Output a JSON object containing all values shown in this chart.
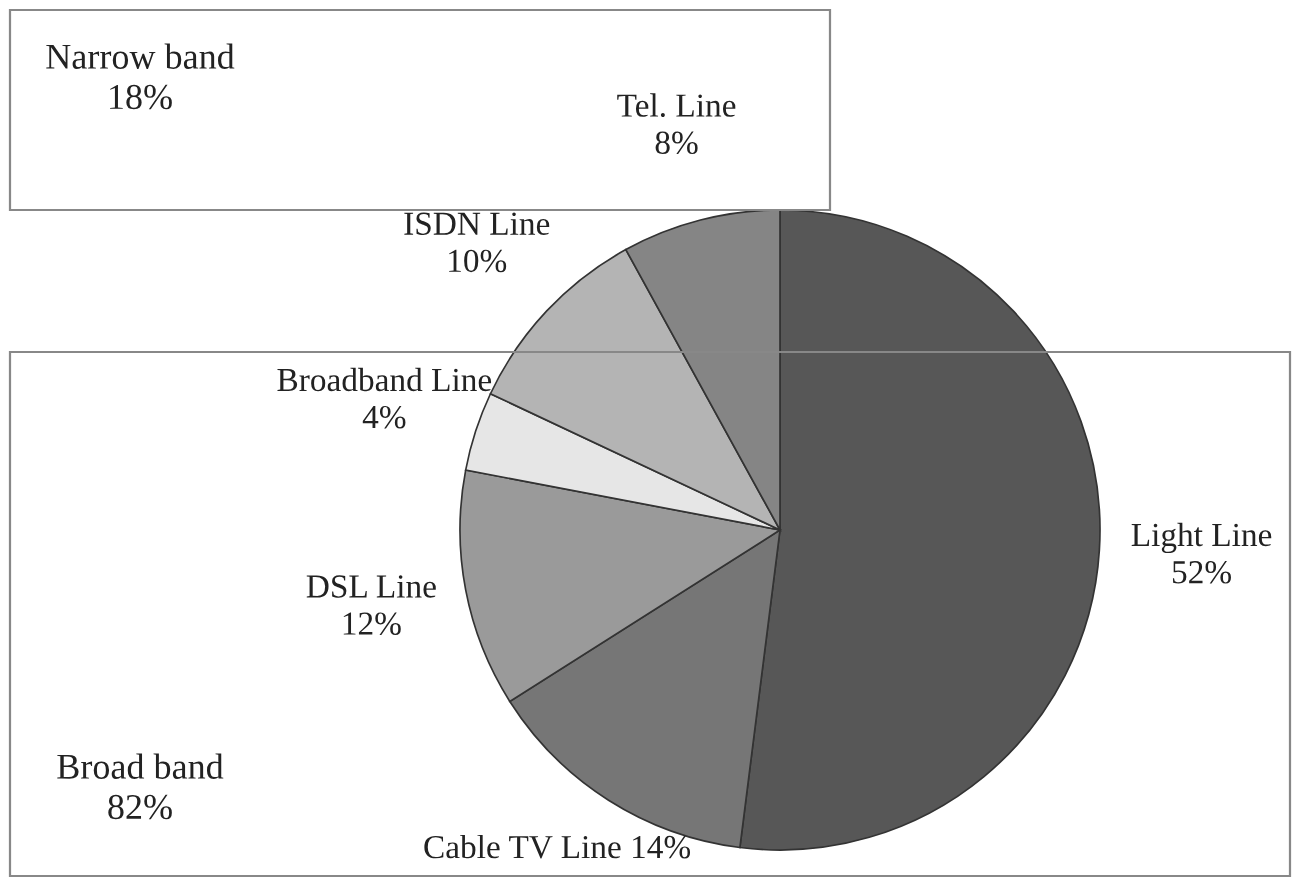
{
  "chart_data": {
    "type": "pie",
    "categories": [
      "Light Line",
      "Cable TV Line",
      "DSL Line",
      "Broadband Line",
      "ISDN Line",
      "Tel. Line"
    ],
    "values": [
      52,
      14,
      12,
      4,
      10,
      8
    ],
    "value_labels": [
      "52%",
      "14%",
      "12%",
      "4%",
      "10%",
      "8%"
    ],
    "colors": [
      "#575757",
      "#767676",
      "#9a9a9a",
      "#e6e6e6",
      "#b4b4b4",
      "#858585"
    ],
    "annotations": [
      "Narrow band\n18%",
      "Broad band\n82%"
    ],
    "legend": false
  }
}
